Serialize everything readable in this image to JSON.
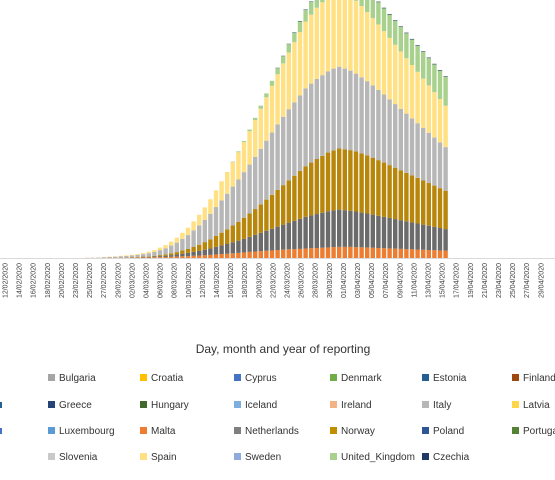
{
  "chart_data": {
    "type": "bar",
    "stacked": true,
    "title": "",
    "xlabel": "Day, month and year of reporting",
    "ylabel": "",
    "ylim": [
      0,
      2050
    ],
    "grid": false,
    "legend_position": "bottom",
    "tick_labels": [
      "12/02/2020",
      "14/02/2020",
      "16/02/2020",
      "18/02/2020",
      "20/02/2020",
      "23/02/2020",
      "25/02/2020",
      "27/02/2020",
      "29/02/2020",
      "02/03/2020",
      "04/03/2020",
      "06/03/2020",
      "08/03/2020",
      "10/03/2020",
      "12/03/2020",
      "14/03/2020",
      "16/03/2020",
      "18/03/2020",
      "20/03/2020",
      "22/03/2020",
      "24/03/2020",
      "26/03/2020",
      "28/03/2020",
      "30/03/2020",
      "01/04/2020",
      "03/04/2020",
      "05/04/2020",
      "07/04/2020",
      "09/04/2020",
      "11/04/2020",
      "13/04/2020",
      "15/04/2020",
      "17/04/2020",
      "19/04/2020",
      "21/04/2020",
      "23/04/2020",
      "25/04/2020",
      "27/04/2020",
      "29/04/2020"
    ],
    "legend": [
      {
        "name": "Bulgaria",
        "color": "#a5a5a5"
      },
      {
        "name": "Croatia",
        "color": "#ffc000"
      },
      {
        "name": "Cyprus",
        "color": "#4472c4"
      },
      {
        "name": "Denmark",
        "color": "#70ad47"
      },
      {
        "name": "Estonia",
        "color": "#255e91"
      },
      {
        "name": "Finland",
        "color": "#9e480e"
      },
      {
        "name": "Greece",
        "color": "#264478"
      },
      {
        "name": "Hungary",
        "color": "#43682b"
      },
      {
        "name": "Iceland",
        "color": "#7cafdd"
      },
      {
        "name": "Ireland",
        "color": "#f4b183"
      },
      {
        "name": "Italy",
        "color": "#b7b7b7"
      },
      {
        "name": "Latvia",
        "color": "#ffd54a"
      },
      {
        "name": "Luxembourg",
        "color": "#5b9bd5"
      },
      {
        "name": "Malta",
        "color": "#ed7d31"
      },
      {
        "name": "Netherlands",
        "color": "#7f7f7f"
      },
      {
        "name": "Norway",
        "color": "#bf8f00"
      },
      {
        "name": "Poland",
        "color": "#2f5597"
      },
      {
        "name": "Portuga",
        "color": "#548235"
      },
      {
        "name": "Slovenia",
        "color": "#c9c9c9"
      },
      {
        "name": "Spain",
        "color": "#ffe082"
      },
      {
        "name": "Sweden",
        "color": "#8faadc"
      },
      {
        "name": "United_Kingdom",
        "color": "#a9d18e"
      },
      {
        "name": "Czechia",
        "color": "#1f3864"
      }
    ],
    "stack_components": [
      {
        "name": "Ireland",
        "color": "#ed7d31"
      },
      {
        "name": "Netherlands",
        "color": "#6b6b6b"
      },
      {
        "name": "Norway",
        "color": "#b8860b"
      },
      {
        "name": "Italy",
        "color": "#b7b7b7"
      },
      {
        "name": "Spain",
        "color": "#ffe082"
      },
      {
        "name": "United_Kingdom",
        "color": "#a9d18e"
      },
      {
        "name": "Czechia",
        "color": "#1f3864"
      }
    ],
    "values": [
      [
        0,
        0,
        0,
        0,
        0,
        0,
        0
      ],
      [
        0,
        0,
        0,
        0,
        0,
        0,
        0
      ],
      [
        0,
        0,
        0,
        0,
        0,
        0,
        0
      ],
      [
        0,
        0,
        0,
        0,
        0,
        0,
        0
      ],
      [
        0,
        0,
        0,
        0,
        0,
        0,
        0
      ],
      [
        0,
        0,
        0,
        0,
        0,
        0,
        0
      ],
      [
        0,
        0,
        0,
        0,
        0,
        0,
        0
      ],
      [
        0,
        0,
        0,
        0,
        0,
        0,
        0
      ],
      [
        0,
        0,
        0,
        0,
        0,
        0,
        0
      ],
      [
        0,
        0,
        0,
        0,
        0,
        0,
        0
      ],
      [
        0,
        0,
        0,
        0,
        0,
        0,
        0
      ],
      [
        0,
        0,
        0,
        0,
        0,
        0,
        0
      ],
      [
        0,
        0,
        0,
        0,
        0,
        0,
        0
      ],
      [
        0,
        0,
        0,
        0,
        0,
        0,
        0
      ],
      [
        0,
        0,
        0,
        0,
        0,
        0,
        0
      ],
      [
        1,
        0,
        0,
        1,
        0,
        0,
        0
      ],
      [
        1,
        0,
        0,
        2,
        1,
        0,
        0
      ],
      [
        1,
        0,
        0,
        3,
        1,
        0,
        0
      ],
      [
        2,
        1,
        0,
        4,
        1,
        0,
        0
      ],
      [
        2,
        1,
        1,
        6,
        2,
        0,
        0
      ],
      [
        2,
        1,
        1,
        8,
        3,
        0,
        0
      ],
      [
        3,
        2,
        1,
        10,
        4,
        0,
        0
      ],
      [
        3,
        2,
        2,
        12,
        5,
        0,
        0
      ],
      [
        4,
        3,
        2,
        14,
        6,
        0,
        0
      ],
      [
        4,
        3,
        3,
        17,
        8,
        0,
        0
      ],
      [
        5,
        4,
        4,
        22,
        10,
        0,
        0
      ],
      [
        5,
        5,
        5,
        28,
        13,
        0,
        0
      ],
      [
        6,
        7,
        7,
        35,
        17,
        0,
        0
      ],
      [
        8,
        9,
        9,
        45,
        22,
        0,
        0
      ],
      [
        9,
        12,
        12,
        55,
        28,
        0,
        0
      ],
      [
        11,
        15,
        16,
        70,
        36,
        0,
        0
      ],
      [
        13,
        19,
        21,
        85,
        45,
        0,
        0
      ],
      [
        15,
        24,
        28,
        105,
        55,
        0,
        0
      ],
      [
        17,
        29,
        35,
        125,
        66,
        0,
        0
      ],
      [
        20,
        35,
        44,
        150,
        80,
        0,
        0
      ],
      [
        22,
        42,
        55,
        175,
        95,
        0,
        0
      ],
      [
        25,
        50,
        68,
        200,
        112,
        0,
        0
      ],
      [
        28,
        58,
        82,
        230,
        130,
        0,
        0
      ],
      [
        32,
        68,
        98,
        260,
        150,
        0,
        0
      ],
      [
        35,
        78,
        115,
        290,
        172,
        0,
        0
      ],
      [
        38,
        88,
        132,
        320,
        195,
        0,
        0
      ],
      [
        42,
        100,
        150,
        350,
        220,
        5,
        0
      ],
      [
        46,
        110,
        170,
        380,
        245,
        8,
        0
      ],
      [
        50,
        122,
        190,
        410,
        270,
        10,
        0
      ],
      [
        55,
        135,
        210,
        440,
        300,
        15,
        0
      ],
      [
        58,
        150,
        232,
        470,
        330,
        20,
        0
      ],
      [
        62,
        165,
        255,
        500,
        360,
        28,
        0
      ],
      [
        65,
        180,
        280,
        530,
        390,
        35,
        0
      ],
      [
        68,
        195,
        305,
        560,
        420,
        45,
        0
      ],
      [
        72,
        210,
        330,
        590,
        450,
        55,
        3
      ],
      [
        75,
        225,
        355,
        615,
        480,
        65,
        3
      ],
      [
        78,
        240,
        380,
        640,
        510,
        75,
        3
      ],
      [
        80,
        255,
        405,
        660,
        540,
        85,
        4
      ],
      [
        82,
        270,
        430,
        680,
        570,
        95,
        4
      ],
      [
        85,
        285,
        455,
        700,
        600,
        105,
        4
      ],
      [
        88,
        295,
        475,
        710,
        620,
        115,
        4
      ],
      [
        90,
        305,
        495,
        720,
        640,
        125,
        5
      ],
      [
        92,
        315,
        512,
        725,
        655,
        135,
        5
      ],
      [
        95,
        325,
        528,
        730,
        670,
        145,
        5
      ],
      [
        98,
        330,
        540,
        735,
        680,
        155,
        5
      ],
      [
        100,
        335,
        550,
        735,
        690,
        165,
        5
      ],
      [
        100,
        330,
        548,
        725,
        680,
        170,
        5
      ],
      [
        100,
        325,
        545,
        715,
        670,
        175,
        5
      ],
      [
        98,
        320,
        540,
        700,
        655,
        180,
        5
      ],
      [
        96,
        312,
        532,
        685,
        640,
        185,
        5
      ],
      [
        95,
        305,
        522,
        668,
        622,
        190,
        5
      ],
      [
        92,
        298,
        512,
        650,
        605,
        195,
        5
      ],
      [
        90,
        290,
        500,
        632,
        588,
        200,
        5
      ],
      [
        88,
        282,
        488,
        612,
        570,
        205,
        5
      ],
      [
        86,
        274,
        475,
        592,
        552,
        210,
        5
      ],
      [
        84,
        266,
        462,
        572,
        534,
        215,
        5
      ],
      [
        82,
        258,
        449,
        552,
        516,
        220,
        5
      ],
      [
        80,
        250,
        436,
        532,
        498,
        225,
        5
      ],
      [
        78,
        242,
        423,
        512,
        480,
        230,
        5
      ],
      [
        76,
        234,
        410,
        492,
        462,
        235,
        5
      ],
      [
        74,
        226,
        397,
        472,
        444,
        240,
        5
      ],
      [
        72,
        218,
        384,
        452,
        426,
        245,
        5
      ],
      [
        70,
        210,
        371,
        432,
        408,
        250,
        5
      ],
      [
        68,
        202,
        358,
        412,
        390,
        255,
        5
      ],
      [
        66,
        194,
        345,
        392,
        372,
        260,
        5
      ]
    ]
  }
}
